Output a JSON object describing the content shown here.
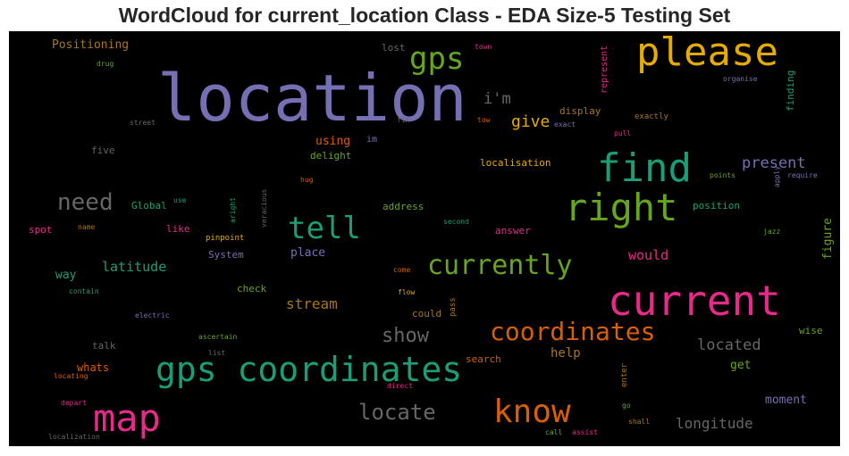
{
  "title": "WordCloud for current_location Class - EDA Size-5 Testing Set",
  "chart_data": {
    "type": "wordcloud",
    "background": "#000000",
    "words": [
      {
        "text": "location",
        "size": 72,
        "color": "#7570b3",
        "weight": 1.0
      },
      {
        "text": "current",
        "size": 46,
        "color": "#e7298a",
        "weight": 0.62
      },
      {
        "text": "please",
        "size": 44,
        "color": "#e6ab02",
        "weight": 0.6
      },
      {
        "text": "find",
        "size": 44,
        "color": "#1b9e77",
        "weight": 0.6
      },
      {
        "text": "right",
        "size": 42,
        "color": "#66a61e",
        "weight": 0.57
      },
      {
        "text": "map",
        "size": 42,
        "color": "#e7298a",
        "weight": 0.57
      },
      {
        "text": "gps coordinates",
        "size": 38,
        "color": "#1b9e77",
        "weight": 0.52
      },
      {
        "text": "know",
        "size": 36,
        "color": "#d95f02",
        "weight": 0.49
      },
      {
        "text": "tell",
        "size": 34,
        "color": "#1b9e77",
        "weight": 0.46
      },
      {
        "text": "gps",
        "size": 34,
        "color": "#66a61e",
        "weight": 0.46
      },
      {
        "text": "currently",
        "size": 30,
        "color": "#66a61e",
        "weight": 0.41
      },
      {
        "text": "coordinates",
        "size": 28,
        "color": "#d95f02",
        "weight": 0.38
      },
      {
        "text": "need",
        "size": 26,
        "color": "#666666",
        "weight": 0.35
      },
      {
        "text": "locate",
        "size": 24,
        "color": "#666666",
        "weight": 0.32
      },
      {
        "text": "show",
        "size": 22,
        "color": "#666666",
        "weight": 0.3
      },
      {
        "text": "give",
        "size": 18,
        "color": "#e6ab02",
        "weight": 0.24
      },
      {
        "text": "i'm",
        "size": 17,
        "color": "#666666",
        "weight": 0.23
      },
      {
        "text": "present",
        "size": 17,
        "color": "#7570b3",
        "weight": 0.23
      },
      {
        "text": "located",
        "size": 17,
        "color": "#666666",
        "weight": 0.23
      },
      {
        "text": "longitude",
        "size": 16,
        "color": "#666666",
        "weight": 0.22
      },
      {
        "text": "stream",
        "size": 16,
        "color": "#a6761d",
        "weight": 0.22
      },
      {
        "text": "would",
        "size": 15,
        "color": "#e7298a",
        "weight": 0.2
      },
      {
        "text": "latitude",
        "size": 15,
        "color": "#1b9e77",
        "weight": 0.2
      },
      {
        "text": "help",
        "size": 14,
        "color": "#a6761d",
        "weight": 0.19
      },
      {
        "text": "moment",
        "size": 13,
        "color": "#7570b3",
        "weight": 0.18
      },
      {
        "text": "Positioning",
        "size": 13,
        "color": "#a6761d",
        "weight": 0.18
      },
      {
        "text": "place",
        "size": 13,
        "color": "#7570b3",
        "weight": 0.18
      },
      {
        "text": "using",
        "size": 13,
        "color": "#d95f02",
        "weight": 0.18
      },
      {
        "text": "way",
        "size": 13,
        "color": "#1b9e77",
        "weight": 0.18
      },
      {
        "text": "get",
        "size": 13,
        "color": "#66a61e",
        "weight": 0.18
      },
      {
        "text": "figure",
        "size": 13,
        "color": "#66a61e",
        "weight": 0.18
      },
      {
        "text": "whats",
        "size": 12,
        "color": "#d95f02",
        "weight": 0.16
      },
      {
        "text": "five",
        "size": 11,
        "color": "#666666",
        "weight": 0.15
      },
      {
        "text": "lost",
        "size": 11,
        "color": "#666666",
        "weight": 0.15
      },
      {
        "text": "display",
        "size": 11,
        "color": "#a6761d",
        "weight": 0.15
      },
      {
        "text": "localisation",
        "size": 11,
        "color": "#e6ab02",
        "weight": 0.15
      },
      {
        "text": "delight",
        "size": 11,
        "color": "#66a61e",
        "weight": 0.15
      },
      {
        "text": "address",
        "size": 11,
        "color": "#66a61e",
        "weight": 0.15
      },
      {
        "text": "Global",
        "size": 11,
        "color": "#1b9e77",
        "weight": 0.15
      },
      {
        "text": "like",
        "size": 11,
        "color": "#e7298a",
        "weight": 0.15
      },
      {
        "text": "System",
        "size": 11,
        "color": "#7570b3",
        "weight": 0.15
      },
      {
        "text": "check",
        "size": 11,
        "color": "#66a61e",
        "weight": 0.15
      },
      {
        "text": "could",
        "size": 11,
        "color": "#a6761d",
        "weight": 0.15
      },
      {
        "text": "talk",
        "size": 11,
        "color": "#666666",
        "weight": 0.15
      },
      {
        "text": "search",
        "size": 11,
        "color": "#d95f02",
        "weight": 0.15
      },
      {
        "text": "answer",
        "size": 11,
        "color": "#e7298a",
        "weight": 0.15
      },
      {
        "text": "position",
        "size": 11,
        "color": "#1b9e77",
        "weight": 0.15
      },
      {
        "text": "spot",
        "size": 11,
        "color": "#e7298a",
        "weight": 0.15
      },
      {
        "text": "wise",
        "size": 11,
        "color": "#66a61e",
        "weight": 0.15
      },
      {
        "text": "finding",
        "size": 11,
        "color": "#1b9e77",
        "weight": 0.15
      },
      {
        "text": "represent",
        "size": 10,
        "color": "#e7298a",
        "weight": 0.14
      },
      {
        "text": "im",
        "size": 10,
        "color": "#7570b3",
        "weight": 0.14
      },
      {
        "text": "exactly",
        "size": 9,
        "color": "#a6761d",
        "weight": 0.12
      },
      {
        "text": "pinpoint",
        "size": 9,
        "color": "#e6ab02",
        "weight": 0.12
      },
      {
        "text": "enter",
        "size": 9,
        "color": "#a6761d",
        "weight": 0.12
      },
      {
        "text": "pass",
        "size": 9,
        "color": "#a6761d",
        "weight": 0.12
      },
      {
        "text": "drug",
        "size": 8,
        "color": "#66a61e",
        "weight": 0.11
      },
      {
        "text": "town",
        "size": 8,
        "color": "#e7298a",
        "weight": 0.11
      },
      {
        "text": "organise",
        "size": 8,
        "color": "#7570b3",
        "weight": 0.11
      },
      {
        "text": "street",
        "size": 8,
        "color": "#666666",
        "weight": 0.11
      },
      {
        "text": "fix",
        "size": 8,
        "color": "#666666",
        "weight": 0.11
      },
      {
        "text": "tow",
        "size": 8,
        "color": "#d95f02",
        "weight": 0.11
      },
      {
        "text": "exact",
        "size": 8,
        "color": "#7570b3",
        "weight": 0.11
      },
      {
        "text": "pull",
        "size": 8,
        "color": "#e7298a",
        "weight": 0.11
      },
      {
        "text": "points",
        "size": 8,
        "color": "#66a61e",
        "weight": 0.11
      },
      {
        "text": "require",
        "size": 8,
        "color": "#7570b3",
        "weight": 0.11
      },
      {
        "text": "apply",
        "size": 8,
        "color": "#7570b3",
        "weight": 0.11
      },
      {
        "text": "hug",
        "size": 8,
        "color": "#d95f02",
        "weight": 0.11
      },
      {
        "text": "use",
        "size": 8,
        "color": "#1b9e77",
        "weight": 0.11
      },
      {
        "text": "aright",
        "size": 8,
        "color": "#1b9e77",
        "weight": 0.11
      },
      {
        "text": "veracious",
        "size": 8,
        "color": "#666666",
        "weight": 0.11
      },
      {
        "text": "name",
        "size": 8,
        "color": "#a6761d",
        "weight": 0.11
      },
      {
        "text": "second",
        "size": 8,
        "color": "#1b9e77",
        "weight": 0.11
      },
      {
        "text": "jazz",
        "size": 8,
        "color": "#66a61e",
        "weight": 0.11
      },
      {
        "text": "contain",
        "size": 8,
        "color": "#1b9e77",
        "weight": 0.11
      },
      {
        "text": "come",
        "size": 8,
        "color": "#d95f02",
        "weight": 0.11
      },
      {
        "text": "flow",
        "size": 8,
        "color": "#e6ab02",
        "weight": 0.11
      },
      {
        "text": "electric",
        "size": 8,
        "color": "#7570b3",
        "weight": 0.11
      },
      {
        "text": "ascertain",
        "size": 8,
        "color": "#66a61e",
        "weight": 0.11
      },
      {
        "text": "list",
        "size": 8,
        "color": "#666666",
        "weight": 0.11
      },
      {
        "text": "locating",
        "size": 8,
        "color": "#d95f02",
        "weight": 0.11
      },
      {
        "text": "direct",
        "size": 8,
        "color": "#e7298a",
        "weight": 0.11
      },
      {
        "text": "depart",
        "size": 8,
        "color": "#e7298a",
        "weight": 0.11
      },
      {
        "text": "go",
        "size": 8,
        "color": "#66a61e",
        "weight": 0.11
      },
      {
        "text": "shall",
        "size": 8,
        "color": "#a6761d",
        "weight": 0.11
      },
      {
        "text": "localization",
        "size": 8,
        "color": "#666666",
        "weight": 0.11
      },
      {
        "text": "call",
        "size": 8,
        "color": "#66a61e",
        "weight": 0.11
      },
      {
        "text": "assist",
        "size": 8,
        "color": "#e7298a",
        "weight": 0.11
      }
    ]
  }
}
